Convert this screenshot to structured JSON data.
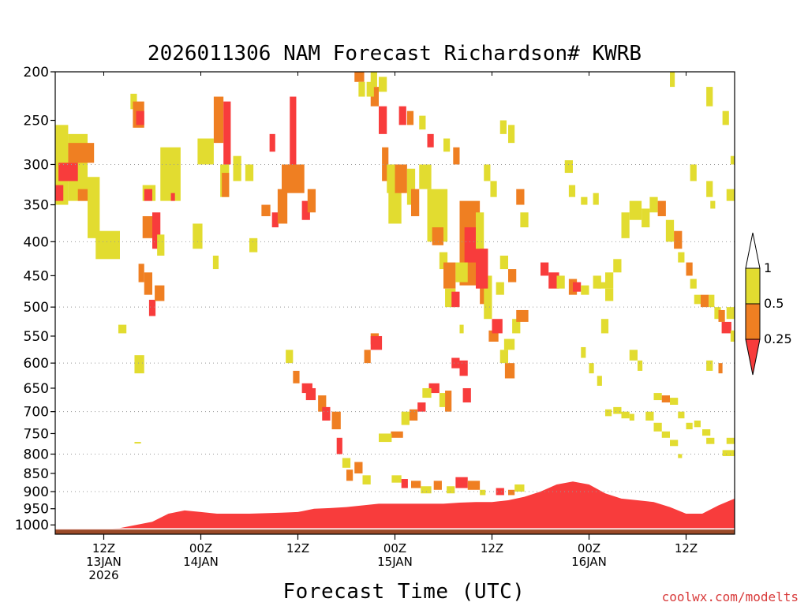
{
  "chart_data": {
    "type": "heatmap",
    "title": "2026011306 NAM Forecast Richardson# KWRB",
    "xlabel": "Forecast Time (UTC)",
    "credit": "coolwx.com/modelts",
    "x_unit": "hours since 2026-01-13 06Z",
    "xlim": [
      0,
      84
    ],
    "x_ticks": [
      {
        "hour": 6,
        "lines": [
          "12Z",
          "13JAN",
          "2026"
        ]
      },
      {
        "hour": 18,
        "lines": [
          "00Z",
          "14JAN"
        ]
      },
      {
        "hour": 30,
        "lines": [
          "12Z"
        ]
      },
      {
        "hour": 42,
        "lines": [
          "00Z",
          "15JAN"
        ]
      },
      {
        "hour": 54,
        "lines": [
          "12Z"
        ]
      },
      {
        "hour": 66,
        "lines": [
          "00Z",
          "16JAN"
        ]
      },
      {
        "hour": 78,
        "lines": [
          "12Z"
        ]
      }
    ],
    "y_unit": "hPa",
    "ylim": [
      1030,
      200
    ],
    "y_ticks": [
      200,
      250,
      300,
      350,
      400,
      450,
      500,
      550,
      600,
      650,
      700,
      750,
      800,
      850,
      900,
      950,
      1000
    ],
    "gridlines": [
      300,
      400,
      500,
      600,
      700,
      800,
      900
    ],
    "surface_pressure": 1015,
    "colors": {
      "ground": "#9a4a28",
      "lt_0_25": "#f83c3c",
      "b_0_25_0_5": "#ef7f22",
      "b_0_5_1": "#e2dc30",
      "ge_1": "#ffffff"
    },
    "legend": {
      "labels": [
        "1",
        "0.5",
        "0.25"
      ],
      "bins": [
        {
          "range": "Ri < 0.25",
          "color": "#f83c3c"
        },
        {
          "range": "0.25 - 0.5",
          "color": "#ef7f22"
        },
        {
          "range": "0.5 - 1",
          "color": "#e2dc30"
        },
        {
          "range": "Ri > 1",
          "color": "#ffffff"
        }
      ]
    },
    "boundary_layer_top": {
      "hours": [
        0,
        5,
        8,
        12,
        14,
        16,
        18,
        20,
        24,
        28,
        30,
        32,
        34,
        36,
        38,
        40,
        42,
        44,
        46,
        48,
        50,
        52,
        54,
        56,
        58,
        60,
        62,
        64,
        66,
        68,
        70,
        72,
        74,
        76,
        78,
        80,
        82,
        84
      ],
      "low_red_top_hPa": [
        1012,
        1012,
        1010,
        990,
        965,
        955,
        960,
        965,
        965,
        962,
        960,
        950,
        948,
        945,
        940,
        935,
        935,
        935,
        935,
        935,
        932,
        930,
        930,
        925,
        915,
        900,
        880,
        872,
        880,
        905,
        920,
        925,
        930,
        945,
        965,
        965,
        940,
        920
      ]
    },
    "cells": [
      [
        0.0,
        1.6,
        255,
        350,
        "y"
      ],
      [
        1.6,
        4.0,
        265,
        345,
        "y"
      ],
      [
        1.6,
        4.8,
        275,
        298,
        "o"
      ],
      [
        0.4,
        2.8,
        298,
        320,
        "r"
      ],
      [
        0.0,
        1.0,
        325,
        345,
        "r"
      ],
      [
        2.8,
        4.0,
        330,
        345,
        "o"
      ],
      [
        4.0,
        5.5,
        315,
        395,
        "y"
      ],
      [
        5.0,
        8.0,
        385,
        425,
        "y"
      ],
      [
        7.8,
        8.8,
        530,
        545,
        "y"
      ],
      [
        9.3,
        10.1,
        222,
        238,
        "y"
      ],
      [
        9.6,
        11.0,
        230,
        258,
        "o"
      ],
      [
        10.0,
        11.0,
        240,
        255,
        "r"
      ],
      [
        10.8,
        12.4,
        325,
        345,
        "y"
      ],
      [
        11.0,
        12.0,
        330,
        345,
        "r"
      ],
      [
        10.8,
        12.0,
        365,
        395,
        "o"
      ],
      [
        12.0,
        13.0,
        360,
        410,
        "r"
      ],
      [
        13.0,
        15.5,
        280,
        345,
        "y"
      ],
      [
        14.3,
        14.8,
        335,
        345,
        "r"
      ],
      [
        10.3,
        11.0,
        432,
        460,
        "o"
      ],
      [
        11.0,
        12.0,
        445,
        480,
        "o"
      ],
      [
        11.6,
        12.4,
        488,
        515,
        "r"
      ],
      [
        12.3,
        13.5,
        465,
        490,
        "o"
      ],
      [
        12.6,
        13.5,
        390,
        420,
        "y"
      ],
      [
        9.8,
        11.0,
        585,
        620,
        "y"
      ],
      [
        9.8,
        10.6,
        770,
        770,
        "y"
      ],
      [
        17.6,
        19.6,
        270,
        300,
        "y"
      ],
      [
        19.6,
        20.8,
        225,
        275,
        "o"
      ],
      [
        20.4,
        21.5,
        300,
        340,
        "y"
      ],
      [
        17.0,
        18.2,
        375,
        410,
        "y"
      ],
      [
        19.5,
        20.2,
        420,
        440,
        "y"
      ],
      [
        20.8,
        21.7,
        230,
        300,
        "r"
      ],
      [
        20.6,
        21.5,
        310,
        340,
        "o"
      ],
      [
        22.0,
        23.0,
        290,
        320,
        "y"
      ],
      [
        23.5,
        24.5,
        300,
        320,
        "y"
      ],
      [
        24.0,
        25.0,
        395,
        415,
        "y"
      ],
      [
        26.5,
        27.2,
        265,
        285,
        "r"
      ],
      [
        25.5,
        26.6,
        350,
        365,
        "o"
      ],
      [
        26.8,
        27.6,
        360,
        380,
        "r"
      ],
      [
        27.5,
        28.7,
        330,
        375,
        "o"
      ],
      [
        29.0,
        29.8,
        225,
        305,
        "r"
      ],
      [
        28.0,
        30.8,
        300,
        335,
        "o"
      ],
      [
        30.5,
        31.5,
        345,
        370,
        "r"
      ],
      [
        31.2,
        32.2,
        330,
        360,
        "o"
      ],
      [
        28.5,
        29.4,
        575,
        600,
        "y"
      ],
      [
        29.4,
        30.2,
        615,
        640,
        "o"
      ],
      [
        30.5,
        31.8,
        640,
        660,
        "r"
      ],
      [
        31.0,
        32.2,
        650,
        675,
        "r"
      ],
      [
        32.5,
        33.5,
        665,
        700,
        "o"
      ],
      [
        33.0,
        34.0,
        690,
        720,
        "r"
      ],
      [
        34.2,
        35.3,
        700,
        740,
        "o"
      ],
      [
        34.8,
        35.5,
        760,
        800,
        "r"
      ],
      [
        35.5,
        36.5,
        810,
        835,
        "y"
      ],
      [
        36.0,
        36.8,
        840,
        870,
        "o"
      ],
      [
        37.0,
        38.0,
        820,
        850,
        "o"
      ],
      [
        38.0,
        39.0,
        855,
        880,
        "y"
      ],
      [
        38.2,
        39.0,
        575,
        600,
        "o"
      ],
      [
        39.0,
        40.0,
        545,
        565,
        "o"
      ],
      [
        39.0,
        40.4,
        550,
        575,
        "r"
      ],
      [
        40.0,
        41.0,
        235,
        265,
        "r"
      ],
      [
        40.4,
        41.2,
        280,
        320,
        "o"
      ],
      [
        41.0,
        42.2,
        300,
        335,
        "y"
      ],
      [
        41.2,
        42.8,
        320,
        375,
        "y"
      ],
      [
        42.0,
        43.5,
        300,
        335,
        "o"
      ],
      [
        43.5,
        44.5,
        305,
        350,
        "y"
      ],
      [
        44.0,
        45.0,
        330,
        365,
        "o"
      ],
      [
        45.0,
        46.5,
        300,
        330,
        "y"
      ],
      [
        46.0,
        48.5,
        330,
        400,
        "y"
      ],
      [
        46.6,
        48.0,
        380,
        405,
        "o"
      ],
      [
        47.5,
        48.5,
        415,
        440,
        "y"
      ],
      [
        48.0,
        49.5,
        430,
        470,
        "o"
      ],
      [
        48.2,
        49.5,
        470,
        500,
        "y"
      ],
      [
        49.0,
        50.0,
        475,
        500,
        "r"
      ],
      [
        50.0,
        52.5,
        345,
        465,
        "o"
      ],
      [
        50.6,
        52.5,
        380,
        430,
        "r"
      ],
      [
        52.0,
        53.0,
        360,
        440,
        "y"
      ],
      [
        52.5,
        53.5,
        410,
        495,
        "o"
      ],
      [
        53.0,
        54.0,
        450,
        520,
        "y"
      ],
      [
        52.0,
        53.5,
        410,
        470,
        "r"
      ],
      [
        49.5,
        51.0,
        430,
        460,
        "y"
      ],
      [
        50.0,
        50.5,
        530,
        545,
        "y"
      ],
      [
        49.0,
        50.0,
        590,
        610,
        "r"
      ],
      [
        50.0,
        51.0,
        595,
        625,
        "r"
      ],
      [
        50.4,
        51.4,
        650,
        680,
        "r"
      ],
      [
        48.2,
        49.0,
        655,
        700,
        "o"
      ],
      [
        47.5,
        48.2,
        660,
        690,
        "y"
      ],
      [
        46.2,
        47.5,
        640,
        660,
        "r"
      ],
      [
        45.4,
        46.5,
        650,
        670,
        "y"
      ],
      [
        44.8,
        45.8,
        680,
        700,
        "r"
      ],
      [
        43.8,
        44.8,
        695,
        720,
        "o"
      ],
      [
        42.8,
        43.8,
        700,
        730,
        "y"
      ],
      [
        41.5,
        43.0,
        745,
        760,
        "o"
      ],
      [
        40.0,
        41.6,
        750,
        770,
        "y"
      ],
      [
        41.6,
        42.8,
        855,
        875,
        "y"
      ],
      [
        42.8,
        43.6,
        865,
        890,
        "r"
      ],
      [
        44.0,
        45.2,
        870,
        890,
        "o"
      ],
      [
        45.2,
        46.5,
        885,
        905,
        "y"
      ],
      [
        46.8,
        47.8,
        870,
        895,
        "o"
      ],
      [
        48.4,
        49.4,
        885,
        905,
        "y"
      ],
      [
        49.5,
        51.0,
        860,
        890,
        "r"
      ],
      [
        51.0,
        52.5,
        870,
        895,
        "o"
      ],
      [
        52.5,
        53.2,
        895,
        910,
        "y"
      ],
      [
        54.5,
        55.5,
        890,
        910,
        "r"
      ],
      [
        56.0,
        56.8,
        895,
        910,
        "o"
      ],
      [
        56.8,
        58.0,
        880,
        900,
        "y"
      ],
      [
        55.6,
        56.8,
        600,
        630,
        "o"
      ],
      [
        55.0,
        56.0,
        575,
        600,
        "y"
      ],
      [
        53.6,
        54.8,
        540,
        560,
        "o"
      ],
      [
        54.0,
        55.3,
        520,
        545,
        "r"
      ],
      [
        55.5,
        56.8,
        555,
        575,
        "y"
      ],
      [
        56.5,
        57.5,
        520,
        545,
        "y"
      ],
      [
        57.0,
        58.5,
        505,
        525,
        "o"
      ],
      [
        54.5,
        55.5,
        460,
        480,
        "y"
      ],
      [
        55.0,
        56.0,
        420,
        440,
        "y"
      ],
      [
        56.0,
        57.0,
        440,
        460,
        "o"
      ],
      [
        60.0,
        61.0,
        430,
        450,
        "r"
      ],
      [
        61.0,
        62.3,
        445,
        470,
        "r"
      ],
      [
        62.0,
        63.0,
        450,
        470,
        "y"
      ],
      [
        63.5,
        64.5,
        455,
        480,
        "o"
      ],
      [
        64.0,
        65.0,
        460,
        475,
        "r"
      ],
      [
        65.0,
        66.0,
        465,
        480,
        "y"
      ],
      [
        66.5,
        67.5,
        450,
        470,
        "y"
      ],
      [
        67.0,
        68.0,
        460,
        470,
        "y"
      ],
      [
        68.0,
        69.0,
        445,
        470,
        "y"
      ],
      [
        69.0,
        70.0,
        425,
        445,
        "y"
      ],
      [
        70.0,
        71.0,
        360,
        395,
        "y"
      ],
      [
        71.0,
        72.5,
        345,
        370,
        "y"
      ],
      [
        72.5,
        73.5,
        355,
        380,
        "y"
      ],
      [
        73.5,
        74.5,
        340,
        360,
        "y"
      ],
      [
        74.5,
        75.5,
        345,
        365,
        "o"
      ],
      [
        75.5,
        76.5,
        370,
        400,
        "y"
      ],
      [
        76.5,
        77.5,
        385,
        410,
        "o"
      ],
      [
        77.0,
        77.8,
        415,
        430,
        "y"
      ],
      [
        78.0,
        78.8,
        430,
        450,
        "o"
      ],
      [
        78.5,
        79.3,
        455,
        470,
        "y"
      ],
      [
        79.0,
        79.8,
        480,
        495,
        "y"
      ],
      [
        79.8,
        80.8,
        480,
        500,
        "o"
      ],
      [
        80.8,
        81.5,
        480,
        500,
        "y"
      ],
      [
        81.5,
        82.3,
        500,
        520,
        "y"
      ],
      [
        82.0,
        82.8,
        505,
        525,
        "o"
      ],
      [
        82.4,
        83.6,
        525,
        545,
        "r"
      ],
      [
        83.0,
        84.0,
        500,
        520,
        "y"
      ],
      [
        83.5,
        84.0,
        540,
        560,
        "y"
      ],
      [
        74.0,
        75.0,
        660,
        675,
        "y"
      ],
      [
        75.0,
        76.0,
        665,
        680,
        "o"
      ],
      [
        76.0,
        77.0,
        670,
        685,
        "y"
      ],
      [
        77.0,
        77.8,
        700,
        715,
        "y"
      ],
      [
        78.0,
        78.8,
        725,
        740,
        "y"
      ],
      [
        79.0,
        79.8,
        720,
        735,
        "y"
      ],
      [
        80.0,
        81.0,
        740,
        755,
        "y"
      ],
      [
        80.5,
        81.5,
        760,
        775,
        "y"
      ],
      [
        82.5,
        84.0,
        790,
        805,
        "y"
      ],
      [
        83.0,
        84.0,
        760,
        775,
        "y"
      ],
      [
        82.0,
        82.5,
        600,
        620,
        "o"
      ],
      [
        80.5,
        81.3,
        595,
        615,
        "y"
      ],
      [
        68.0,
        68.8,
        695,
        710,
        "y"
      ],
      [
        69.0,
        70.0,
        690,
        705,
        "y"
      ],
      [
        70.0,
        71.0,
        700,
        715,
        "y"
      ],
      [
        71.0,
        71.6,
        705,
        720,
        "y"
      ],
      [
        71.0,
        72.0,
        575,
        595,
        "y"
      ],
      [
        72.0,
        72.6,
        595,
        615,
        "y"
      ],
      [
        73.0,
        74.0,
        700,
        720,
        "y"
      ],
      [
        74.0,
        75.0,
        725,
        745,
        "y"
      ],
      [
        75.0,
        76.0,
        745,
        760,
        "y"
      ],
      [
        76.0,
        77.0,
        765,
        780,
        "y"
      ],
      [
        77.0,
        77.5,
        800,
        810,
        "y"
      ],
      [
        65.0,
        65.6,
        570,
        590,
        "y"
      ],
      [
        66.0,
        66.6,
        600,
        620,
        "y"
      ],
      [
        67.0,
        67.6,
        625,
        645,
        "y"
      ],
      [
        67.5,
        68.4,
        520,
        545,
        "y"
      ],
      [
        68.0,
        69.0,
        470,
        490,
        "y"
      ],
      [
        55.0,
        55.8,
        250,
        265,
        "y"
      ],
      [
        56.0,
        56.8,
        255,
        275,
        "y"
      ],
      [
        48.0,
        48.8,
        270,
        285,
        "y"
      ],
      [
        49.2,
        50.0,
        280,
        300,
        "o"
      ],
      [
        46.0,
        46.8,
        265,
        280,
        "r"
      ],
      [
        45.0,
        45.8,
        245,
        260,
        "y"
      ],
      [
        43.5,
        44.3,
        240,
        255,
        "o"
      ],
      [
        42.5,
        43.4,
        235,
        255,
        "r"
      ],
      [
        39.0,
        40.0,
        215,
        235,
        "o"
      ],
      [
        38.5,
        39.4,
        210,
        225,
        "y"
      ],
      [
        37.0,
        38.2,
        200,
        210,
        "o"
      ],
      [
        37.5,
        38.3,
        210,
        225,
        "y"
      ],
      [
        39.0,
        39.8,
        200,
        215,
        "y"
      ],
      [
        40.0,
        41.0,
        205,
        220,
        "y"
      ],
      [
        76.0,
        76.6,
        200,
        215,
        "y"
      ],
      [
        80.5,
        81.3,
        215,
        235,
        "y"
      ],
      [
        82.5,
        83.3,
        240,
        255,
        "y"
      ],
      [
        83.5,
        84.0,
        290,
        300,
        "y"
      ],
      [
        80.5,
        81.3,
        320,
        340,
        "y"
      ],
      [
        78.5,
        79.3,
        300,
        320,
        "y"
      ],
      [
        81.0,
        81.6,
        345,
        355,
        "y"
      ],
      [
        83.0,
        84.0,
        330,
        345,
        "y"
      ],
      [
        63.0,
        64.0,
        295,
        310,
        "y"
      ],
      [
        63.5,
        64.3,
        325,
        340,
        "y"
      ],
      [
        65.0,
        65.8,
        340,
        350,
        "y"
      ],
      [
        66.5,
        67.2,
        335,
        350,
        "y"
      ],
      [
        53.0,
        53.8,
        300,
        320,
        "y"
      ],
      [
        53.8,
        54.6,
        320,
        340,
        "y"
      ],
      [
        57.0,
        58.0,
        330,
        350,
        "o"
      ],
      [
        57.5,
        58.5,
        360,
        380,
        "y"
      ]
    ]
  }
}
